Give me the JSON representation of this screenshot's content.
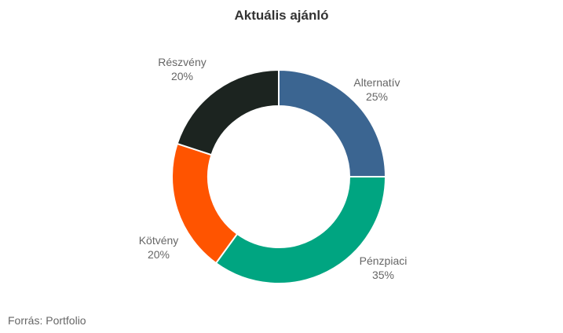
{
  "chart_data": {
    "type": "pie",
    "title": "Aktuális ajánló",
    "categories": [
      "Alternatív",
      "Pénzpiaci",
      "Kötvény",
      "Részvény"
    ],
    "values": [
      25,
      35,
      20,
      20
    ],
    "value_labels": [
      "25%",
      "35%",
      "20%",
      "20%"
    ],
    "colors": [
      "#3b6591",
      "#00a581",
      "#ff5400",
      "#1c2420"
    ],
    "donut": true,
    "start_angle": "top, clockwise",
    "legend": "labels beside slices"
  },
  "footer": {
    "source": "Forrás: Portfolio"
  }
}
